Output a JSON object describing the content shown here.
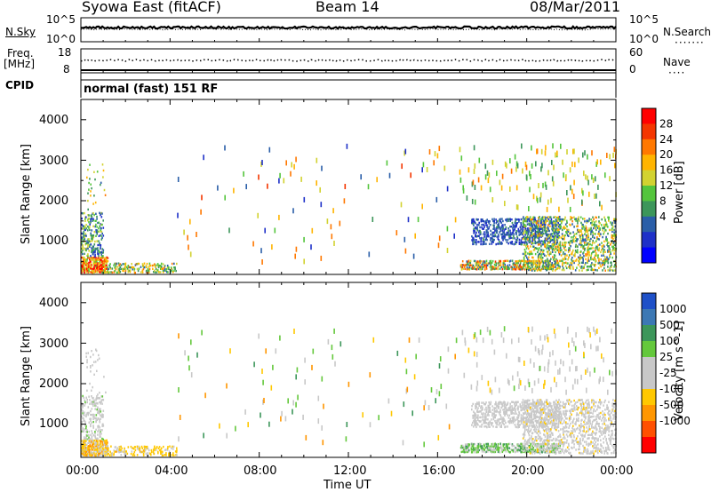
{
  "header": {
    "station": "Syowa East (fitACF)",
    "beam": "Beam 14",
    "date": "08/Mar/2011"
  },
  "summary_panel": {
    "nsky_label": "N.Sky",
    "nsearch_label": "N.Search",
    "ticks_left": [
      "10^5",
      "10^0"
    ],
    "ticks_right": [
      "10^5",
      "10^0"
    ],
    "freq_label": "Freq.",
    "freq_unit": "[MHz]",
    "freq_ticks": [
      "18",
      "8"
    ],
    "nave_label": "Nave",
    "nave_ticks": [
      "60",
      "0"
    ],
    "cpid_label": "CPID",
    "cpid_text": "normal (fast) 151 RF"
  },
  "x_axis": {
    "label": "Time UT",
    "ticks": [
      "00:00",
      "04:00",
      "08:00",
      "12:00",
      "16:00",
      "20:00",
      "00:00"
    ]
  },
  "chart_data": [
    {
      "type": "heatmap",
      "name": "power",
      "ylabel": "Slant Range [km]",
      "yticks": [
        1000,
        2000,
        3000,
        4000
      ],
      "ylim": [
        180,
        4500
      ],
      "xlim_hours": [
        0,
        24
      ],
      "colorbar": {
        "label": "Power [dB]",
        "ticks": [
          "28",
          "24",
          "20",
          "16",
          "12",
          "8",
          "4"
        ],
        "colors": [
          "#ff0000",
          "#f43600",
          "#ff7800",
          "#ffb400",
          "#d2d230",
          "#54c53c",
          "#3c965a",
          "#2a5ea8",
          "#1e30c8",
          "#0000ff"
        ],
        "range": [
          0,
          30
        ]
      },
      "clusters": [
        {
          "t0": 0.0,
          "t1": 1.2,
          "r0": 200,
          "r1": 600,
          "density": 0.75,
          "vmin": 14,
          "vmax": 30
        },
        {
          "t0": 0.0,
          "t1": 1.0,
          "r0": 600,
          "r1": 1700,
          "density": 0.3,
          "vmin": 4,
          "vmax": 18
        },
        {
          "t0": 0.2,
          "t1": 1.1,
          "r0": 1700,
          "r1": 2900,
          "density": 0.05,
          "vmin": 8,
          "vmax": 22
        },
        {
          "t0": 1.2,
          "t1": 4.3,
          "r0": 200,
          "r1": 450,
          "density": 0.35,
          "vmin": 8,
          "vmax": 22
        },
        {
          "t0": 17.0,
          "t1": 21.5,
          "r0": 280,
          "r1": 520,
          "density": 0.55,
          "vmin": 6,
          "vmax": 26
        },
        {
          "t0": 17.5,
          "t1": 21.5,
          "r0": 900,
          "r1": 1550,
          "density": 0.4,
          "vmin": 3,
          "vmax": 10
        },
        {
          "t0": 19.8,
          "t1": 24.0,
          "r0": 250,
          "r1": 1600,
          "density": 0.3,
          "vmin": 6,
          "vmax": 22
        },
        {
          "t0": 17.0,
          "t1": 24.0,
          "r0": 1800,
          "r1": 3400,
          "density": 0.02,
          "vmin": 10,
          "vmax": 22
        },
        {
          "t0": 4.3,
          "t1": 17.0,
          "r0": 500,
          "r1": 3400,
          "density": 0.005,
          "vmin": 4,
          "vmax": 26
        }
      ]
    },
    {
      "type": "heatmap",
      "name": "velocity",
      "ylabel": "Slant Range [km]",
      "yticks": [
        1000,
        2000,
        3000,
        4000
      ],
      "ylim": [
        180,
        4500
      ],
      "xlim_hours": [
        0,
        24
      ],
      "colorbar": {
        "label": "Velocity [m s^-1]",
        "ticks": [
          "1000",
          "500",
          "100",
          "25",
          "-25",
          "-100",
          "-500",
          "-1000"
        ],
        "colors": [
          "#1e50c8",
          "#3c78b4",
          "#3c965a",
          "#64c83c",
          "#c8c8c8",
          "#c8c8c8",
          "#ffc800",
          "#ff9600",
          "#ff5000",
          "#ff0000"
        ],
        "range": [
          -1200,
          1200
        ]
      },
      "clusters": [
        {
          "t0": 0.0,
          "t1": 1.2,
          "r0": 200,
          "r1": 600,
          "density": 0.75,
          "vmin": -600,
          "vmax": -50
        },
        {
          "t0": 0.0,
          "t1": 1.0,
          "r0": 600,
          "r1": 1700,
          "density": 0.3,
          "vmin": -200,
          "vmax": 300
        },
        {
          "t0": 0.2,
          "t1": 1.1,
          "r0": 1700,
          "r1": 2900,
          "density": 0.05,
          "vmin": -200,
          "vmax": 200
        },
        {
          "t0": 1.2,
          "t1": 4.3,
          "r0": 200,
          "r1": 450,
          "density": 0.35,
          "vmin": -500,
          "vmax": -100
        },
        {
          "t0": 17.0,
          "t1": 21.5,
          "r0": 280,
          "r1": 520,
          "density": 0.55,
          "vmin": 50,
          "vmax": 600
        },
        {
          "t0": 17.5,
          "t1": 21.5,
          "r0": 900,
          "r1": 1550,
          "density": 0.4,
          "vmin": -30,
          "vmax": 30
        },
        {
          "t0": 19.8,
          "t1": 24.0,
          "r0": 250,
          "r1": 1600,
          "density": 0.3,
          "vmin": -300,
          "vmax": 200
        },
        {
          "t0": 17.0,
          "t1": 24.0,
          "r0": 1800,
          "r1": 3400,
          "density": 0.02,
          "vmin": -300,
          "vmax": 300
        },
        {
          "t0": 4.3,
          "t1": 17.0,
          "r0": 500,
          "r1": 3400,
          "density": 0.005,
          "vmin": -700,
          "vmax": 700
        }
      ]
    }
  ]
}
